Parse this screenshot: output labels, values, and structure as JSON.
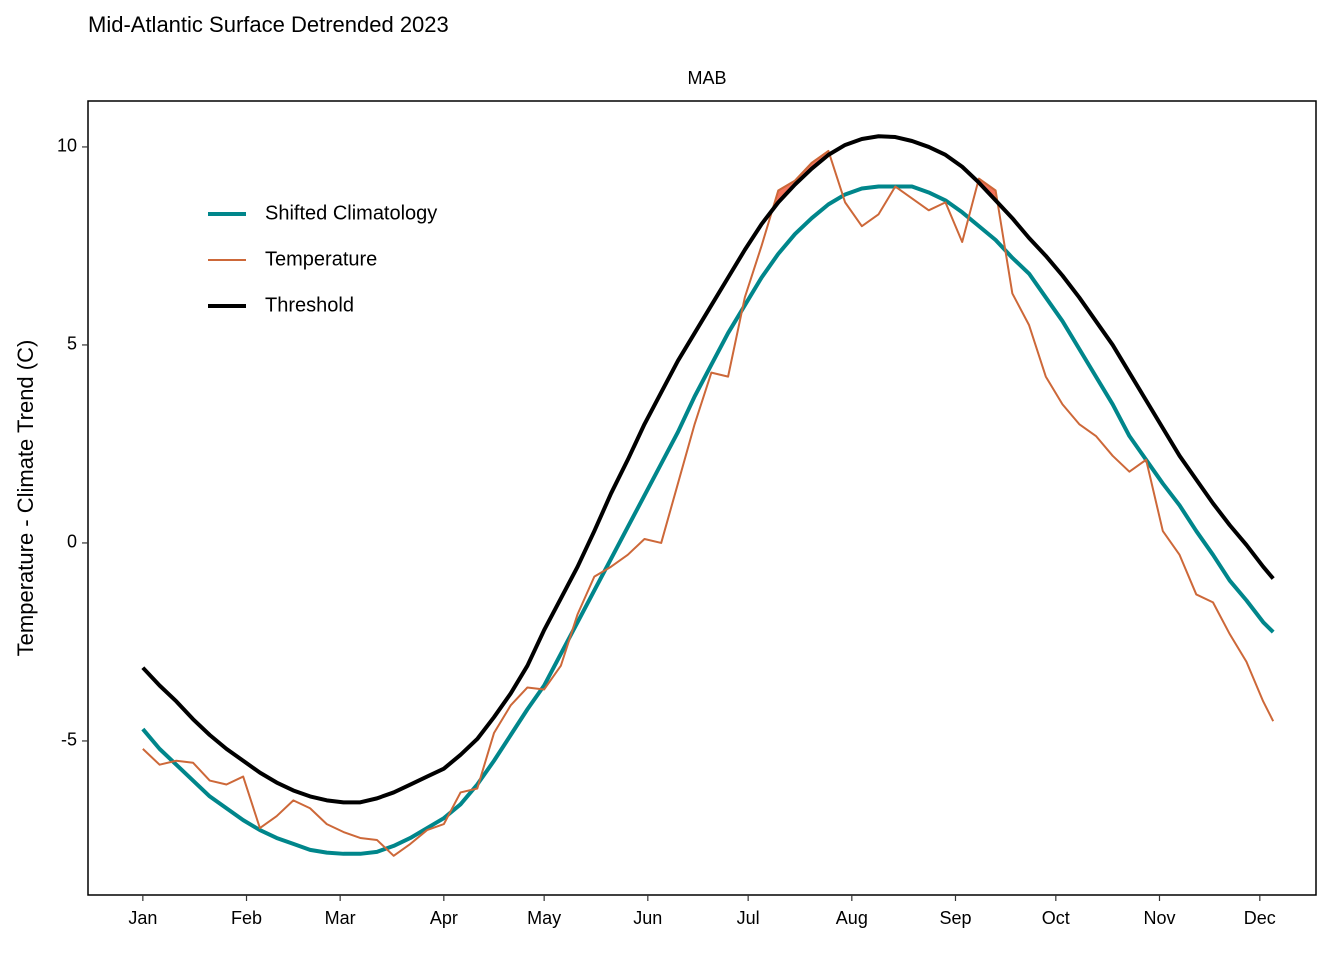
{
  "chart_data": {
    "type": "line",
    "title": "Mid-Atlantic Surface Detrended 2023",
    "panel_label": "MAB",
    "y_label": "Temperature - Climate Trend (C)",
    "x": [
      1,
      6,
      11,
      16,
      21,
      26,
      31,
      36,
      41,
      46,
      51,
      56,
      61,
      66,
      71,
      76,
      81,
      86,
      91,
      96,
      101,
      106,
      111,
      116,
      121,
      126,
      131,
      136,
      141,
      146,
      151,
      156,
      161,
      166,
      171,
      176,
      181,
      186,
      191,
      196,
      201,
      206,
      211,
      216,
      221,
      226,
      231,
      236,
      241,
      246,
      251,
      256,
      261,
      266,
      271,
      276,
      281,
      286,
      291,
      296,
      301,
      306,
      311,
      316,
      321,
      326,
      331,
      336,
      339
    ],
    "xlim": [
      -15.4,
      351.8
    ],
    "xticks": [
      {
        "value": 1,
        "label": "Jan"
      },
      {
        "value": 32,
        "label": "Feb"
      },
      {
        "value": 60,
        "label": "Mar"
      },
      {
        "value": 91,
        "label": "Apr"
      },
      {
        "value": 121,
        "label": "May"
      },
      {
        "value": 152,
        "label": "Jun"
      },
      {
        "value": 182,
        "label": "Jul"
      },
      {
        "value": 213,
        "label": "Aug"
      },
      {
        "value": 244,
        "label": "Sep"
      },
      {
        "value": 274,
        "label": "Oct"
      },
      {
        "value": 305,
        "label": "Nov"
      },
      {
        "value": 335,
        "label": "Dec"
      }
    ],
    "ylim": [
      -8.89,
      11.16
    ],
    "yticks": [
      -5,
      0,
      5,
      10
    ],
    "legend_position": "top-left",
    "series": [
      {
        "name": "Shifted Climatology",
        "color": "#00868b",
        "width": 4,
        "values": [
          -4.7,
          -5.2,
          -5.6,
          -6.0,
          -6.4,
          -6.7,
          -7.0,
          -7.25,
          -7.45,
          -7.6,
          -7.75,
          -7.82,
          -7.85,
          -7.85,
          -7.8,
          -7.65,
          -7.45,
          -7.2,
          -6.95,
          -6.6,
          -6.1,
          -5.5,
          -4.85,
          -4.2,
          -3.6,
          -2.8,
          -2.0,
          -1.2,
          -0.4,
          0.4,
          1.2,
          2.0,
          2.8,
          3.7,
          4.5,
          5.3,
          6.0,
          6.7,
          7.3,
          7.8,
          8.2,
          8.55,
          8.8,
          8.95,
          9.0,
          9.0,
          9.0,
          8.85,
          8.65,
          8.35,
          8.0,
          7.65,
          7.2,
          6.8,
          6.2,
          5.6,
          4.9,
          4.2,
          3.5,
          2.7,
          2.1,
          1.5,
          0.95,
          0.3,
          -0.3,
          -0.95,
          -1.45,
          -2.0,
          -2.25
        ]
      },
      {
        "name": "Temperature",
        "color": "#cd6839",
        "width": 2,
        "values": [
          -5.2,
          -5.6,
          -5.5,
          -5.55,
          -6.0,
          -6.1,
          -5.9,
          -7.2,
          -6.9,
          -6.5,
          -6.7,
          -7.1,
          -7.3,
          -7.45,
          -7.5,
          -7.9,
          -7.6,
          -7.25,
          -7.1,
          -6.3,
          -6.2,
          -4.8,
          -4.1,
          -3.65,
          -3.7,
          -3.1,
          -1.8,
          -0.85,
          -0.6,
          -0.3,
          0.1,
          0.0,
          1.5,
          3.0,
          4.3,
          4.2,
          6.2,
          7.5,
          8.9,
          9.15,
          9.6,
          9.9,
          8.6,
          8.0,
          8.3,
          9.0,
          8.7,
          8.4,
          8.6,
          7.6,
          9.2,
          8.9,
          6.3,
          5.5,
          4.2,
          3.5,
          3.0,
          2.7,
          2.2,
          1.8,
          2.1,
          0.3,
          -0.3,
          -1.3,
          -1.5,
          -2.3,
          -3.0,
          -4.0,
          -4.5
        ]
      },
      {
        "name": "Threshold",
        "color": "#000000",
        "width": 4,
        "values": [
          -3.15,
          -3.6,
          -4.0,
          -4.45,
          -4.85,
          -5.2,
          -5.5,
          -5.8,
          -6.05,
          -6.25,
          -6.4,
          -6.5,
          -6.55,
          -6.55,
          -6.45,
          -6.3,
          -6.1,
          -5.9,
          -5.7,
          -5.35,
          -4.95,
          -4.4,
          -3.8,
          -3.1,
          -2.2,
          -1.4,
          -0.6,
          0.3,
          1.25,
          2.1,
          3.0,
          3.8,
          4.6,
          5.3,
          6.0,
          6.7,
          7.4,
          8.05,
          8.6,
          9.05,
          9.45,
          9.8,
          10.05,
          10.2,
          10.27,
          10.25,
          10.15,
          10.0,
          9.8,
          9.5,
          9.1,
          8.65,
          8.2,
          7.7,
          7.25,
          6.75,
          6.2,
          5.6,
          5.0,
          4.3,
          3.6,
          2.9,
          2.2,
          1.6,
          1.0,
          0.45,
          -0.05,
          -0.6,
          -0.9
        ]
      }
    ],
    "highlight_color": "#f4735c"
  }
}
